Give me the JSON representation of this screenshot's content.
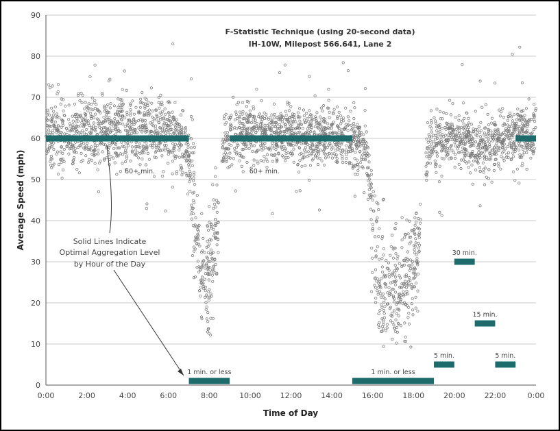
{
  "chart_data": {
    "type": "scatter",
    "title": "F-Statistic Technique (using 20-second data)",
    "subtitle": "IH-10W, Milepost 566.641, Lane 2",
    "xlabel": "Time of Day",
    "ylabel": "Average Speed (mph)",
    "xlim": [
      0,
      24
    ],
    "ylim": [
      0,
      90
    ],
    "x_ticks": [
      "0:00",
      "2:00",
      "4:00",
      "6:00",
      "8:00",
      "10:00",
      "12:00",
      "14:00",
      "16:00",
      "18:00",
      "20:00",
      "22:00",
      "0:00"
    ],
    "y_ticks": [
      "0",
      "10",
      "20",
      "30",
      "40",
      "50",
      "60",
      "70",
      "80",
      "90"
    ],
    "grid": "horizontal",
    "colors": {
      "points": "#7a7a7a",
      "segments": "#1e6b6b"
    },
    "speed_profile": [
      {
        "x": 0,
        "y": 61
      },
      {
        "x": 2,
        "y": 61
      },
      {
        "x": 4,
        "y": 62
      },
      {
        "x": 6,
        "y": 61
      },
      {
        "x": 6.8,
        "y": 58
      },
      {
        "x": 7.1,
        "y": 52
      },
      {
        "x": 7.3,
        "y": 40
      },
      {
        "x": 7.55,
        "y": 30
      },
      {
        "x": 7.8,
        "y": 25
      },
      {
        "x": 8.1,
        "y": 28
      },
      {
        "x": 8.4,
        "y": 40
      },
      {
        "x": 8.7,
        "y": 58
      },
      {
        "x": 9,
        "y": 61
      },
      {
        "x": 12,
        "y": 61
      },
      {
        "x": 15,
        "y": 60
      },
      {
        "x": 15.7,
        "y": 58
      },
      {
        "x": 15.9,
        "y": 45
      },
      {
        "x": 16.1,
        "y": 32
      },
      {
        "x": 16.5,
        "y": 23
      },
      {
        "x": 17,
        "y": 23
      },
      {
        "x": 17.6,
        "y": 24
      },
      {
        "x": 18,
        "y": 30
      },
      {
        "x": 18.3,
        "y": 38
      },
      {
        "x": 18.5,
        "y": 50
      },
      {
        "x": 18.8,
        "y": 60
      },
      {
        "x": 20,
        "y": 60
      },
      {
        "x": 21,
        "y": 58
      },
      {
        "x": 22,
        "y": 59
      },
      {
        "x": 24,
        "y": 61
      }
    ],
    "segments": [
      {
        "x0": 0,
        "x1": 7,
        "y": 60,
        "label": ""
      },
      {
        "x0": 9,
        "x1": 15,
        "y": 60,
        "label": ""
      },
      {
        "x0": 23,
        "x1": 24,
        "y": 60,
        "label": ""
      },
      {
        "x0": 7,
        "x1": 9,
        "y": 1,
        "label": "1 min. or less"
      },
      {
        "x0": 15,
        "x1": 19,
        "y": 1,
        "label": "1 min. or less"
      },
      {
        "x0": 19,
        "x1": 20,
        "y": 5,
        "label": "5 min."
      },
      {
        "x0": 20,
        "x1": 21,
        "y": 30,
        "label": "30 min."
      },
      {
        "x0": 21,
        "x1": 22,
        "y": 15,
        "label": "15 min."
      },
      {
        "x0": 22,
        "x1": 23,
        "y": 5,
        "label": "5 min."
      }
    ],
    "annotations": [
      {
        "text": "60+ min.",
        "x": 4.6,
        "y": 51.5
      },
      {
        "text": "60+ min.",
        "x": 10.7,
        "y": 51.5
      }
    ],
    "callout": {
      "lines": [
        "Solid Lines Indicate",
        "Optimal Aggregation Level",
        "by Hour of the Day"
      ]
    }
  }
}
